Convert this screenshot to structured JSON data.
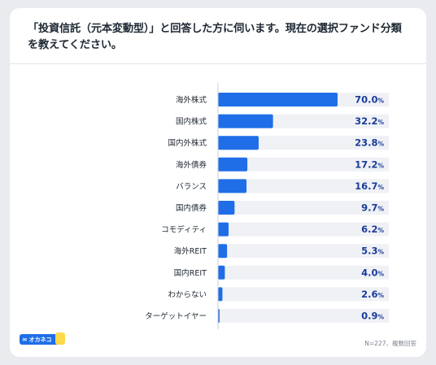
{
  "title": "「投資信託（元本変動型）」と回答した方に伺います。現在の選択ファンド分類を教えてください。",
  "note": "N=227、複数回答",
  "logo": {
    "text": "オカネコ",
    "mark": "∞"
  },
  "colors": {
    "bar": "#1f6ee8",
    "track": "#eff1f5",
    "value": "#1a3c9a"
  },
  "chart_data": {
    "type": "bar",
    "orientation": "horizontal",
    "categories": [
      "海外株式",
      "国内株式",
      "国内外株式",
      "海外債券",
      "バランス",
      "国内債券",
      "コモディティ",
      "海外REIT",
      "国内REIT",
      "わからない",
      "ターゲットイヤー"
    ],
    "values": [
      70.0,
      32.2,
      23.8,
      17.2,
      16.7,
      9.7,
      6.2,
      5.3,
      4.0,
      2.6,
      0.9
    ],
    "value_labels": [
      "70.0",
      "32.2",
      "23.8",
      "17.2",
      "16.7",
      "9.7",
      "6.2",
      "5.3",
      "4.0",
      "2.6",
      "0.9"
    ],
    "unit": "%",
    "xlim": [
      0,
      100
    ]
  }
}
